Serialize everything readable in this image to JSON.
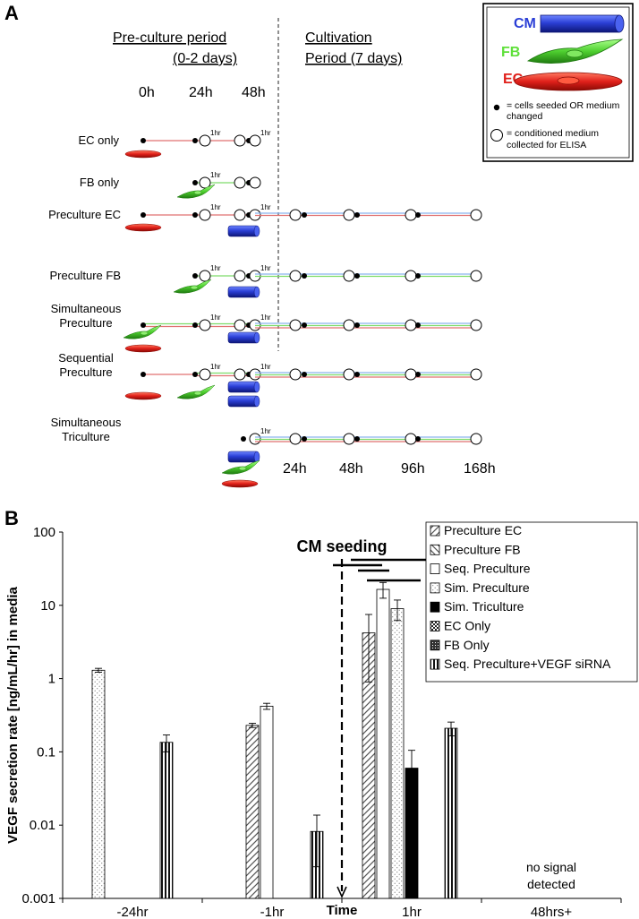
{
  "panel_a": {
    "label": "A",
    "preculture_title": "Pre-culture period",
    "preculture_days": "(0-2 days)",
    "cultivation_title": "Cultivation",
    "cultivation_days": "Period (7 days)",
    "time_top": [
      "0h",
      "24h",
      "48h"
    ],
    "time_bottom": [
      "24h",
      "48h",
      "96h",
      "168h"
    ],
    "hr_label": "1hr",
    "rows": [
      {
        "label1": "EC only",
        "label2": ""
      },
      {
        "label1": "FB only",
        "label2": ""
      },
      {
        "label1": "Preculture EC",
        "label2": ""
      },
      {
        "label1": "Preculture FB",
        "label2": ""
      },
      {
        "label1": "Simultaneous",
        "label2": "Preculture"
      },
      {
        "label1": "Sequential",
        "label2": "Preculture"
      },
      {
        "label1": "Simultaneous",
        "label2": "Triculture"
      }
    ],
    "legend": {
      "cm": "CM",
      "fb": "FB",
      "ec": "EC",
      "dot_text1": "= cells seeded OR medium",
      "dot_text2": "changed",
      "circle_text1": "= conditioned medium",
      "circle_text2": "collected for ELISA"
    },
    "colors": {
      "cm": "#2b3fd6",
      "fb": "#5fe03a",
      "ec": "#e0201a",
      "ec_line": "#e07070",
      "fb_line": "#7ddc6a",
      "cm_line": "#8ab4ee"
    }
  },
  "panel_b": {
    "label": "B",
    "cm_seeding": "CM seeding",
    "no_signal1": "no signal",
    "no_signal2": "detected"
  },
  "chart_data": {
    "type": "bar",
    "title": "",
    "xlabel": "Time",
    "ylabel": "VEGF secretion rate [ng/mL/hr] in media",
    "yscale": "log",
    "ylim": [
      0.001,
      100
    ],
    "yticks": [
      "0.001",
      "0.01",
      "0.1",
      "1",
      "10",
      "100"
    ],
    "categories": [
      "-24hr",
      "-1hr",
      "1hr",
      "48hrs+"
    ],
    "annotation": "CM seeding",
    "series": [
      {
        "name": "Preculture EC",
        "values": [
          null,
          0.23,
          4.2,
          null
        ],
        "errors": [
          null,
          0.015,
          3.3,
          null
        ]
      },
      {
        "name": "Preculture FB",
        "values": [
          null,
          null,
          null,
          null
        ],
        "errors": [
          null,
          null,
          null,
          null
        ]
      },
      {
        "name": "Seq. Preculture",
        "values": [
          null,
          0.42,
          16.5,
          null
        ],
        "errors": [
          null,
          0.04,
          4.0,
          null
        ]
      },
      {
        "name": "Sim. Preculture",
        "values": [
          1.3,
          null,
          9.0,
          null
        ],
        "errors": [
          0.08,
          null,
          2.8,
          null
        ]
      },
      {
        "name": "Sim. Triculture",
        "values": [
          null,
          null,
          0.06,
          null
        ],
        "errors": [
          null,
          null,
          0.045,
          null
        ]
      },
      {
        "name": "EC Only",
        "values": [
          null,
          null,
          null,
          null
        ],
        "errors": [
          null,
          null,
          null,
          null
        ]
      },
      {
        "name": "FB Only",
        "values": [
          null,
          null,
          null,
          null
        ],
        "errors": [
          null,
          null,
          null,
          null
        ]
      },
      {
        "name": "Seq. Preculture+VEGF siRNA",
        "values": [
          0.135,
          0.0082,
          0.21,
          null
        ],
        "errors": [
          0.035,
          0.0055,
          0.045,
          null
        ]
      }
    ]
  }
}
